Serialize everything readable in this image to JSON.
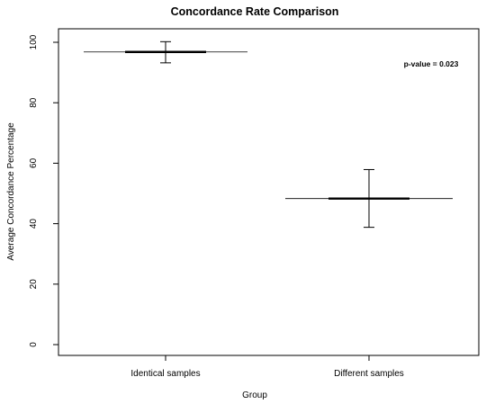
{
  "chart_data": {
    "type": "bar",
    "title": "Concordance Rate Comparison",
    "xlabel": "Group",
    "ylabel": "Average Concordance Percentage",
    "ylim": [
      0,
      100
    ],
    "yticks": [
      0,
      20,
      40,
      60,
      80,
      100
    ],
    "grid": false,
    "categories": [
      "Identical samples",
      "Different samples"
    ],
    "series": [
      {
        "values": [
          96.8,
          48.3
        ],
        "error_low": [
          93.2,
          38.8
        ],
        "error_high": [
          100.2,
          57.9
        ]
      }
    ],
    "annotation": "p-value = 0.023",
    "colors": {
      "axis": "#000000",
      "line": "#000000",
      "background": "#ffffff"
    }
  }
}
